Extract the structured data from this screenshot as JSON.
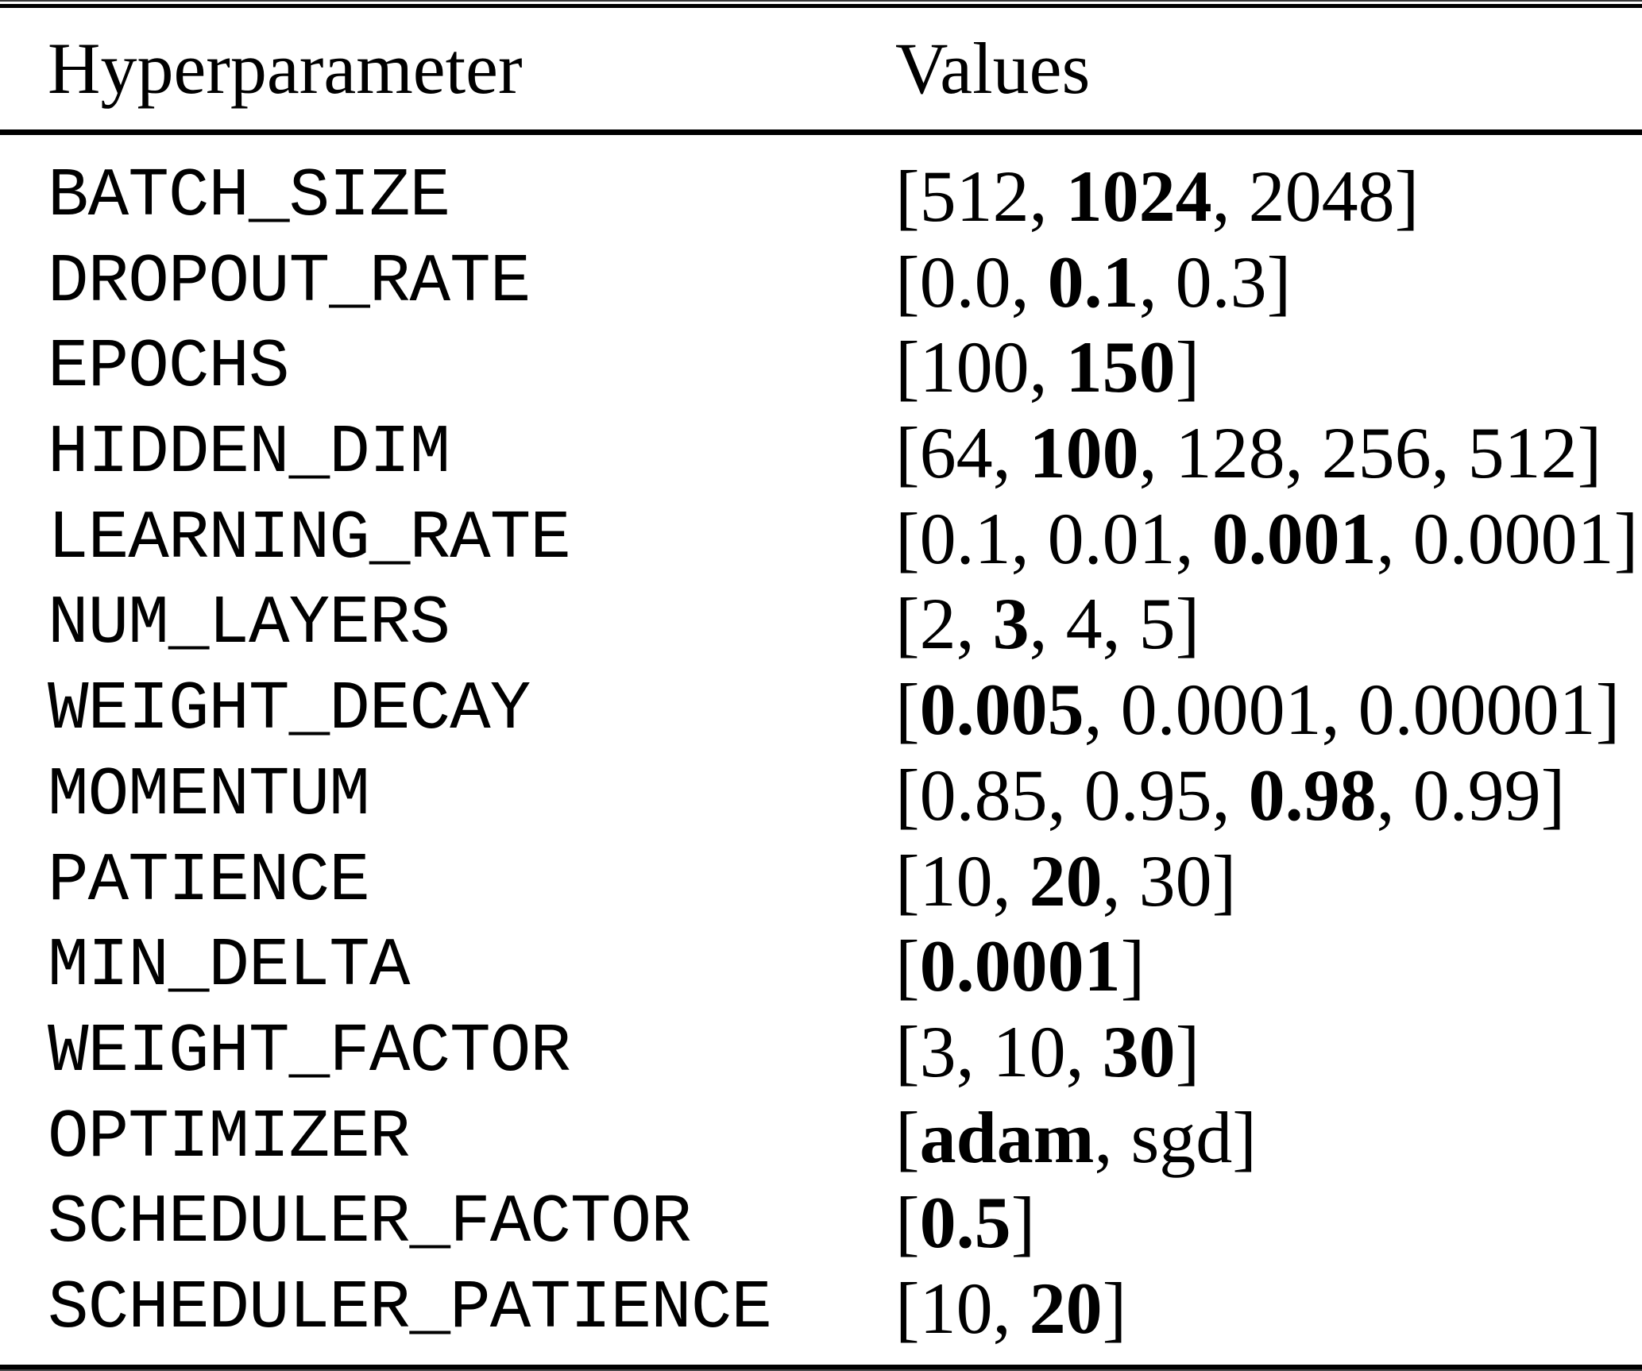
{
  "table": {
    "columns": [
      "Hyperparameter",
      "Values"
    ],
    "rows": [
      {
        "name": "BATCH_SIZE",
        "values": [
          {
            "t": "512",
            "b": false
          },
          {
            "t": "1024",
            "b": true
          },
          {
            "t": "2048",
            "b": false
          }
        ]
      },
      {
        "name": "DROPOUT_RATE",
        "values": [
          {
            "t": "0.0",
            "b": false
          },
          {
            "t": "0.1",
            "b": true
          },
          {
            "t": "0.3",
            "b": false
          }
        ]
      },
      {
        "name": "EPOCHS",
        "values": [
          {
            "t": "100",
            "b": false
          },
          {
            "t": "150",
            "b": true
          }
        ]
      },
      {
        "name": "HIDDEN_DIM",
        "values": [
          {
            "t": "64",
            "b": false
          },
          {
            "t": "100",
            "b": true
          },
          {
            "t": "128",
            "b": false
          },
          {
            "t": "256",
            "b": false
          },
          {
            "t": "512",
            "b": false
          }
        ]
      },
      {
        "name": "LEARNING_RATE",
        "values": [
          {
            "t": "0.1",
            "b": false
          },
          {
            "t": "0.01",
            "b": false
          },
          {
            "t": "0.001",
            "b": true
          },
          {
            "t": "0.0001",
            "b": false
          }
        ]
      },
      {
        "name": "NUM_LAYERS",
        "values": [
          {
            "t": "2",
            "b": false
          },
          {
            "t": "3",
            "b": true
          },
          {
            "t": "4",
            "b": false
          },
          {
            "t": "5",
            "b": false
          }
        ]
      },
      {
        "name": "WEIGHT_DECAY",
        "values": [
          {
            "t": "0.005",
            "b": true
          },
          {
            "t": "0.0001",
            "b": false
          },
          {
            "t": "0.00001",
            "b": false
          }
        ]
      },
      {
        "name": "MOMENTUM",
        "values": [
          {
            "t": "0.85",
            "b": false
          },
          {
            "t": "0.95",
            "b": false
          },
          {
            "t": "0.98",
            "b": true
          },
          {
            "t": "0.99",
            "b": false
          }
        ]
      },
      {
        "name": "PATIENCE",
        "values": [
          {
            "t": "10",
            "b": false
          },
          {
            "t": "20",
            "b": true
          },
          {
            "t": "30",
            "b": false
          }
        ]
      },
      {
        "name": "MIN_DELTA",
        "values": [
          {
            "t": "0.0001",
            "b": true
          }
        ]
      },
      {
        "name": "WEIGHT_FACTOR",
        "values": [
          {
            "t": "3",
            "b": false
          },
          {
            "t": "10",
            "b": false
          },
          {
            "t": "30",
            "b": true
          }
        ]
      },
      {
        "name": "OPTIMIZER",
        "values": [
          {
            "t": "adam",
            "b": true
          },
          {
            "t": "sgd",
            "b": false
          }
        ]
      },
      {
        "name": "SCHEDULER_FACTOR",
        "values": [
          {
            "t": "0.5",
            "b": true
          }
        ]
      },
      {
        "name": "SCHEDULER_PATIENCE",
        "values": [
          {
            "t": "10",
            "b": false
          },
          {
            "t": "20",
            "b": true
          }
        ]
      }
    ],
    "value_list_open": "[",
    "value_list_close": "]",
    "value_list_separator": ", "
  },
  "colors": {
    "text": "#000000",
    "rule": "#000000",
    "background": "#ffffff"
  }
}
